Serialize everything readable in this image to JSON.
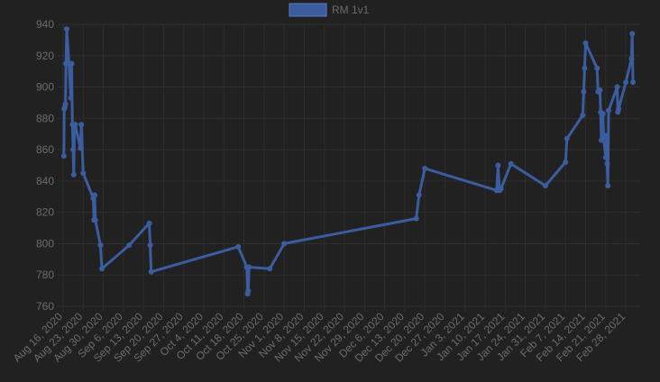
{
  "chart_data": {
    "type": "line",
    "legend": {
      "position": "top",
      "entries": [
        {
          "label": "RM 1v1",
          "color": "#3b5da0"
        }
      ]
    },
    "colors": {
      "background": "#212121",
      "grid": "#2e2e2e",
      "line": "#3b5da0",
      "tick_text": "#6c6c6c"
    },
    "grid": true,
    "ylim": [
      760,
      940
    ],
    "yticks": [
      760,
      780,
      800,
      820,
      840,
      860,
      880,
      900,
      920,
      940
    ],
    "xlim": [
      "2020-08-16",
      "2021-03-05"
    ],
    "xticks": [
      "Aug 16, 2020",
      "Aug 23, 2020",
      "Aug 30, 2020",
      "Sep 6, 2020",
      "Sep 13, 2020",
      "Sep 20, 2020",
      "Sep 27, 2020",
      "Oct 4, 2020",
      "Oct 11, 2020",
      "Oct 18, 2020",
      "Oct 25, 2020",
      "Nov 1, 2020",
      "Nov 8, 2020",
      "Nov 15, 2020",
      "Nov 22, 2020",
      "Nov 29, 2020",
      "Dec 6, 2020",
      "Dec 13, 2020",
      "Dec 20, 2020",
      "Dec 27, 2020",
      "Jan 3, 2021",
      "Jan 10, 2021",
      "Jan 17, 2021",
      "Jan 24, 2021",
      "Jan 31, 2021",
      "Feb 7, 2021",
      "Feb 14, 2021",
      "Feb 21, 2021",
      "Feb 28, 2021"
    ],
    "series": [
      {
        "name": "RM 1v1",
        "points": [
          [
            "2020-08-16T06:00",
            856
          ],
          [
            "2020-08-16T09:00",
            886
          ],
          [
            "2020-08-16T14:00",
            887
          ],
          [
            "2020-08-16T20:00",
            889
          ],
          [
            "2020-08-17T00:00",
            915
          ],
          [
            "2020-08-17T06:00",
            937
          ],
          [
            "2020-08-18T01:00",
            915
          ],
          [
            "2020-08-18T16:00",
            893
          ],
          [
            "2020-08-18T23:00",
            915
          ],
          [
            "2020-08-19T06:00",
            876
          ],
          [
            "2020-08-19T12:00",
            860
          ],
          [
            "2020-08-19T17:00",
            844
          ],
          [
            "2020-08-19T23:00",
            875
          ],
          [
            "2020-08-20T06:00",
            876
          ],
          [
            "2020-08-22T00:00",
            861
          ],
          [
            "2020-08-22T08:00",
            876
          ],
          [
            "2020-08-23T00:00",
            845
          ],
          [
            "2020-08-26T12:00",
            829
          ],
          [
            "2020-08-26T18:00",
            815
          ],
          [
            "2020-08-27T00:00",
            831
          ],
          [
            "2020-08-27T06:00",
            815
          ],
          [
            "2020-08-29T00:00",
            799
          ],
          [
            "2020-08-29T12:00",
            784
          ],
          [
            "2020-09-08T00:00",
            799
          ],
          [
            "2020-09-15T00:00",
            813
          ],
          [
            "2020-09-15T08:00",
            799
          ],
          [
            "2020-09-15T16:00",
            782
          ],
          [
            "2020-10-16T00:00",
            798
          ],
          [
            "2020-10-19T00:00",
            785
          ],
          [
            "2020-10-19T06:00",
            768
          ],
          [
            "2020-10-19T12:00",
            770
          ],
          [
            "2020-10-19T18:00",
            785
          ],
          [
            "2020-10-27T00:00",
            784
          ],
          [
            "2020-11-01T00:00",
            800
          ],
          [
            "2020-12-17T00:00",
            816
          ],
          [
            "2020-12-18T00:00",
            831
          ],
          [
            "2020-12-20T00:00",
            848
          ],
          [
            "2021-01-14T00:00",
            834
          ],
          [
            "2021-01-14T12:00",
            850
          ],
          [
            "2021-01-15T00:00",
            834
          ],
          [
            "2021-01-15T12:00",
            835
          ],
          [
            "2021-01-19T00:00",
            851
          ],
          [
            "2021-01-31T00:00",
            837
          ],
          [
            "2021-02-07T00:00",
            852
          ],
          [
            "2021-02-07T12:00",
            867
          ],
          [
            "2021-02-13T00:00",
            882
          ],
          [
            "2021-02-13T08:00",
            897
          ],
          [
            "2021-02-13T16:00",
            912
          ],
          [
            "2021-02-14T00:00",
            928
          ],
          [
            "2021-02-18T00:00",
            912
          ],
          [
            "2021-02-18T08:00",
            897
          ],
          [
            "2021-02-19T00:00",
            898
          ],
          [
            "2021-02-19T06:00",
            884
          ],
          [
            "2021-02-19T12:00",
            866
          ],
          [
            "2021-02-19T18:00",
            882
          ],
          [
            "2021-02-20T00:00",
            883
          ],
          [
            "2021-02-20T08:00",
            866
          ],
          [
            "2021-02-21T00:00",
            855
          ],
          [
            "2021-02-21T06:00",
            869
          ],
          [
            "2021-02-21T12:00",
            851
          ],
          [
            "2021-02-21T18:00",
            837
          ],
          [
            "2021-02-22T00:00",
            885
          ],
          [
            "2021-02-25T00:00",
            900
          ],
          [
            "2021-02-25T06:00",
            884
          ],
          [
            "2021-02-25T12:00",
            886
          ],
          [
            "2021-02-28T00:00",
            903
          ],
          [
            "2021-03-02T00:00",
            918
          ],
          [
            "2021-03-02T06:00",
            934
          ],
          [
            "2021-03-02T12:00",
            903
          ]
        ]
      }
    ]
  }
}
